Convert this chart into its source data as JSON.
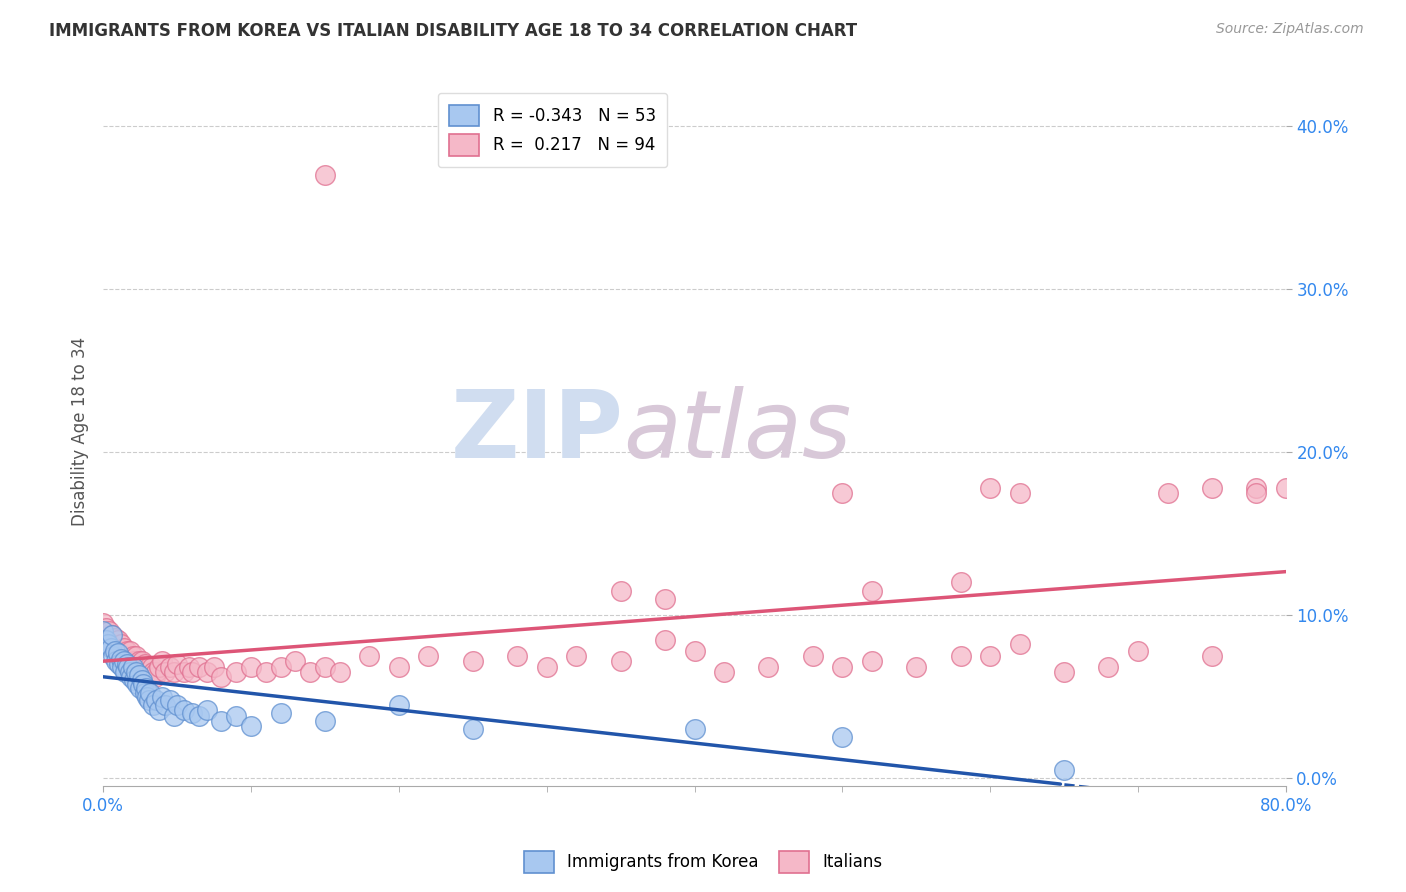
{
  "title": "IMMIGRANTS FROM KOREA VS ITALIAN DISABILITY AGE 18 TO 34 CORRELATION CHART",
  "source": "Source: ZipAtlas.com",
  "ylabel": "Disability Age 18 to 34",
  "xlim": [
    0.0,
    0.8
  ],
  "ylim": [
    -0.005,
    0.43
  ],
  "korea_R": -0.343,
  "korea_N": 53,
  "italian_R": 0.217,
  "italian_N": 94,
  "korea_color": "#a8c8f0",
  "italian_color": "#f5b8c8",
  "korea_edge_color": "#6090d0",
  "italian_edge_color": "#e07090",
  "korea_line_color": "#2255aa",
  "italian_line_color": "#dd5577",
  "watermark_zip": "ZIP",
  "watermark_atlas": "atlas",
  "right_ytick_vals": [
    0.0,
    0.1,
    0.2,
    0.3,
    0.4
  ],
  "right_ytick_labels": [
    "0.0%",
    "10.0%",
    "20.0%",
    "30.0%",
    "40.0%"
  ],
  "korea_scatter_x": [
    0.0,
    0.002,
    0.003,
    0.005,
    0.006,
    0.007,
    0.008,
    0.009,
    0.01,
    0.011,
    0.012,
    0.013,
    0.014,
    0.015,
    0.016,
    0.017,
    0.018,
    0.019,
    0.02,
    0.021,
    0.022,
    0.023,
    0.024,
    0.025,
    0.026,
    0.027,
    0.028,
    0.029,
    0.03,
    0.031,
    0.032,
    0.034,
    0.036,
    0.038,
    0.04,
    0.042,
    0.045,
    0.048,
    0.05,
    0.055,
    0.06,
    0.065,
    0.07,
    0.08,
    0.09,
    0.1,
    0.12,
    0.15,
    0.2,
    0.25,
    0.4,
    0.5,
    0.65
  ],
  "korea_scatter_y": [
    0.09,
    0.085,
    0.082,
    0.08,
    0.088,
    0.075,
    0.078,
    0.072,
    0.077,
    0.07,
    0.073,
    0.068,
    0.072,
    0.065,
    0.07,
    0.068,
    0.065,
    0.062,
    0.068,
    0.06,
    0.065,
    0.058,
    0.063,
    0.055,
    0.06,
    0.058,
    0.052,
    0.055,
    0.05,
    0.048,
    0.052,
    0.045,
    0.048,
    0.042,
    0.05,
    0.045,
    0.048,
    0.038,
    0.045,
    0.042,
    0.04,
    0.038,
    0.042,
    0.035,
    0.038,
    0.032,
    0.04,
    0.035,
    0.045,
    0.03,
    0.03,
    0.025,
    0.005
  ],
  "italian_scatter_x": [
    0.0,
    0.001,
    0.002,
    0.003,
    0.004,
    0.005,
    0.006,
    0.007,
    0.008,
    0.009,
    0.01,
    0.011,
    0.012,
    0.013,
    0.014,
    0.015,
    0.016,
    0.017,
    0.018,
    0.019,
    0.02,
    0.021,
    0.022,
    0.023,
    0.024,
    0.025,
    0.026,
    0.027,
    0.028,
    0.029,
    0.03,
    0.031,
    0.032,
    0.033,
    0.034,
    0.035,
    0.036,
    0.038,
    0.04,
    0.042,
    0.045,
    0.048,
    0.05,
    0.055,
    0.058,
    0.06,
    0.065,
    0.07,
    0.075,
    0.08,
    0.09,
    0.1,
    0.11,
    0.12,
    0.13,
    0.14,
    0.15,
    0.16,
    0.18,
    0.2,
    0.22,
    0.25,
    0.28,
    0.3,
    0.32,
    0.35,
    0.38,
    0.4,
    0.42,
    0.45,
    0.48,
    0.5,
    0.52,
    0.55,
    0.58,
    0.6,
    0.62,
    0.65,
    0.68,
    0.7,
    0.72,
    0.75,
    0.78,
    0.8,
    0.52,
    0.58,
    0.62,
    0.35,
    0.5,
    0.6,
    0.75,
    0.78,
    0.38,
    0.15
  ],
  "italian_scatter_y": [
    0.095,
    0.09,
    0.092,
    0.088,
    0.09,
    0.085,
    0.088,
    0.082,
    0.086,
    0.08,
    0.085,
    0.078,
    0.082,
    0.075,
    0.08,
    0.075,
    0.078,
    0.072,
    0.078,
    0.07,
    0.075,
    0.072,
    0.075,
    0.07,
    0.072,
    0.068,
    0.072,
    0.065,
    0.07,
    0.068,
    0.065,
    0.068,
    0.062,
    0.068,
    0.065,
    0.062,
    0.065,
    0.068,
    0.072,
    0.065,
    0.068,
    0.065,
    0.07,
    0.065,
    0.068,
    0.065,
    0.068,
    0.065,
    0.068,
    0.062,
    0.065,
    0.068,
    0.065,
    0.068,
    0.072,
    0.065,
    0.068,
    0.065,
    0.075,
    0.068,
    0.075,
    0.072,
    0.075,
    0.068,
    0.075,
    0.072,
    0.085,
    0.078,
    0.065,
    0.068,
    0.075,
    0.068,
    0.072,
    0.068,
    0.075,
    0.075,
    0.082,
    0.065,
    0.068,
    0.078,
    0.175,
    0.075,
    0.178,
    0.178,
    0.115,
    0.12,
    0.175,
    0.115,
    0.175,
    0.178,
    0.178,
    0.175,
    0.11,
    0.37
  ]
}
